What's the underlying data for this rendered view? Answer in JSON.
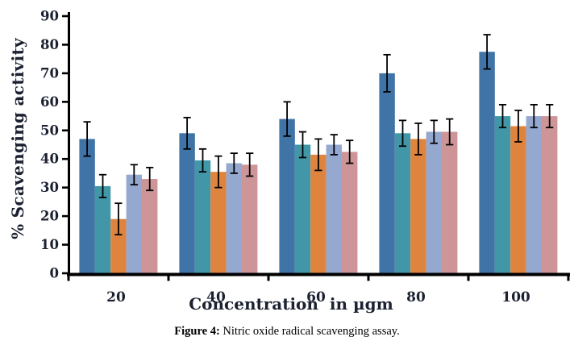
{
  "figure": {
    "caption_prefix": "Figure 4:",
    "caption_text": " Nitric oxide radical scavenging assay."
  },
  "chart_data": {
    "type": "bar",
    "title": "",
    "xlabel": "Concentration  in µgm",
    "ylabel": "% Scavenging activity",
    "categories": [
      "20",
      "40",
      "60",
      "80",
      "100"
    ],
    "series": [
      {
        "color": "#4073A6",
        "values": [
          47,
          49,
          54,
          70,
          77.5
        ],
        "errors": [
          6,
          5.5,
          6,
          6.5,
          6
        ]
      },
      {
        "color": "#4197A8",
        "values": [
          30.5,
          39.5,
          45,
          49,
          55
        ],
        "errors": [
          4,
          4,
          4.5,
          4.5,
          4
        ]
      },
      {
        "color": "#DE843F",
        "values": [
          19,
          35.5,
          41.5,
          47,
          51.5
        ],
        "errors": [
          5.5,
          5.5,
          5.5,
          5.5,
          5.5
        ]
      },
      {
        "color": "#94A8D0",
        "values": [
          34.5,
          38.5,
          45,
          49.5,
          55
        ],
        "errors": [
          3.5,
          3.5,
          3.5,
          4,
          4
        ]
      },
      {
        "color": "#CD9598",
        "values": [
          33,
          38,
          42.5,
          49.5,
          55
        ],
        "errors": [
          4,
          4,
          4,
          4.5,
          4
        ]
      }
    ],
    "ylim": [
      0,
      90
    ],
    "ytick_step": 10,
    "grid": false,
    "legend": "none",
    "error_bars": true,
    "axis_color": "#000000",
    "tick_label_color": "#1b2130"
  }
}
